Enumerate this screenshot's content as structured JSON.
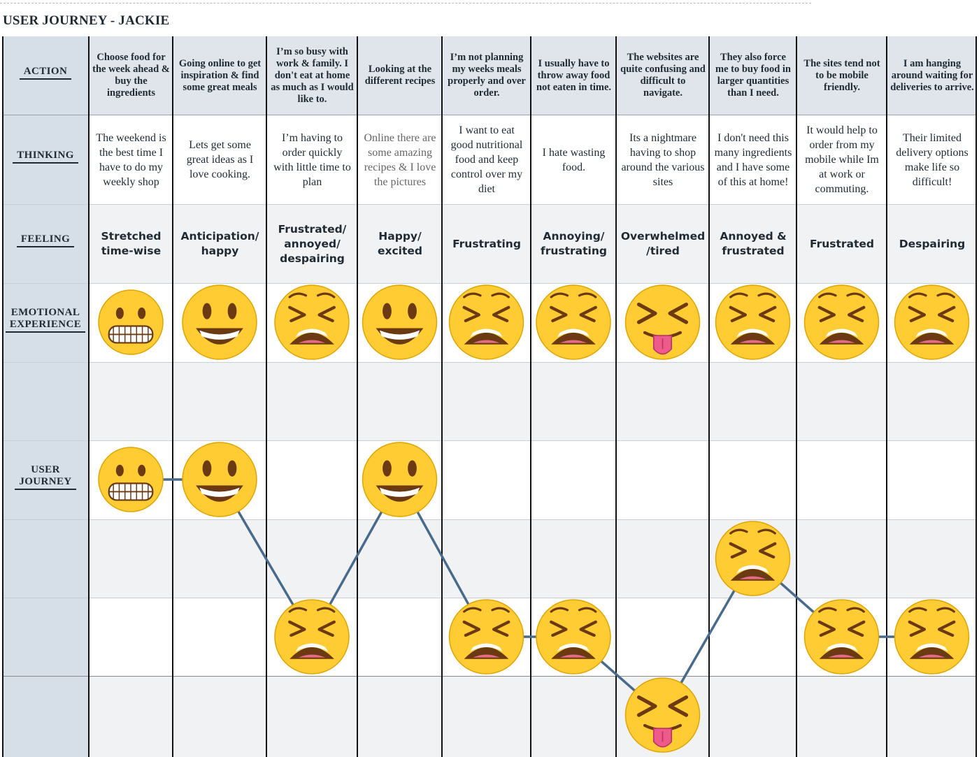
{
  "title": "USER JOURNEY - JACKIE",
  "row_labels": {
    "action": "ACTION",
    "thinking": "THINKING",
    "feeling": "FEELING",
    "emotional_1": "EMOTIONAL",
    "emotional_2": "EXPERIENCE",
    "journey_1": "USER",
    "journey_2": "JOURNEY"
  },
  "steps": [
    {
      "action": "Choose food for the week ahead & buy the ingredients",
      "thinking": "The weekend is the best time I have to do my weekly shop",
      "feeling": "Stretched time-wise",
      "emoji": "grimace",
      "level": 1
    },
    {
      "action": "Going online to get inspiration & find some great meals",
      "thinking": "Lets get some great ideas as I love cooking.",
      "feeling": "Anticipation/ happy",
      "emoji": "smile",
      "level": 1
    },
    {
      "action": "I’m so busy with work & family. I don't eat at home as much as I would like to.",
      "thinking": "I’m having to order quickly with little time to plan",
      "feeling": "Frustrated/ annoyed/ despairing",
      "emoji": "weary",
      "level": 3
    },
    {
      "action": "Looking at the different recipes",
      "thinking": "Online there are some amazing recipes & I love the pictures",
      "feeling": "Happy/ excited",
      "emoji": "smile",
      "level": 1
    },
    {
      "action": "I’m not planning my weeks meals properly and over order.",
      "thinking": "I want to eat good nutritional food and keep control over my diet",
      "feeling": "Frustrating",
      "emoji": "weary",
      "level": 3
    },
    {
      "action": "I usually have to throw away food not eaten in time.",
      "thinking": "I hate wasting food.",
      "feeling": "Annoying/ frustrating",
      "emoji": "weary",
      "level": 3
    },
    {
      "action": "The websites are quite confusing and difficult to navigate.",
      "thinking": "Its a nightmare having to shop around the various sites",
      "feeling": "Overwhelmed /tired",
      "emoji": "tongue",
      "level": 4
    },
    {
      "action": "They also force me to buy food in larger quantities than I need.",
      "thinking": "I don't need this many ingredients and I have some of this at home!",
      "feeling": "Annoyed & frustrated",
      "emoji": "weary",
      "level": 2
    },
    {
      "action": "The sites tend not to be mobile friendly.",
      "thinking": "It would help to order from my mobile while Im at work or commuting.",
      "feeling": "Frustrated",
      "emoji": "weary",
      "level": 3
    },
    {
      "action": "I am hanging around waiting for deliveries to arrive.",
      "thinking": "Their limited delivery options make life so difficult!",
      "feeling": "Despairing",
      "emoji": "weary",
      "level": 3
    }
  ],
  "colors": {
    "label_bg": "#d6dfe7",
    "header_bg": "#dfe5ea",
    "band_bg": "#f1f2f4",
    "line": "#4a6a8c",
    "emoji_face": "#ffcc33"
  }
}
